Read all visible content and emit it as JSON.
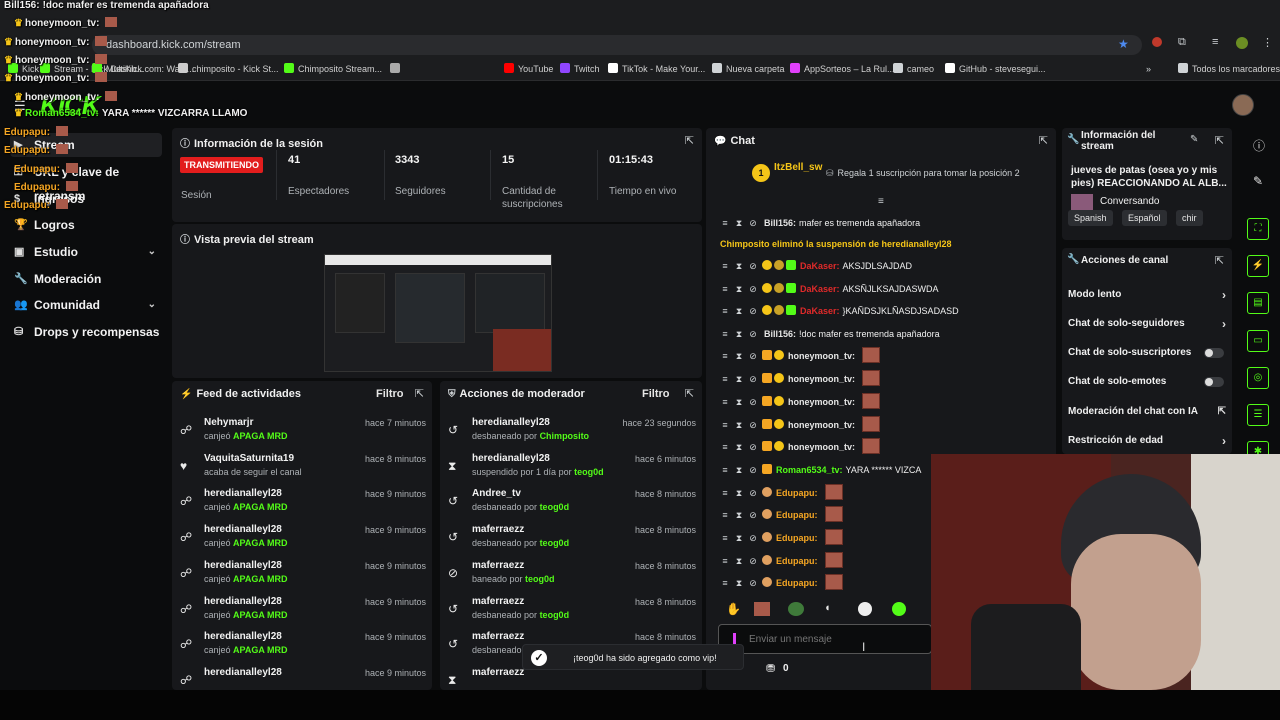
{
  "browser": {
    "url": "dashboard.kick.com/stream",
    "bookmarks": [
      {
        "label": "Kick",
        "color": "#53fc18"
      },
      {
        "label": "Stream - Kick Dashb...",
        "color": "#53fc18"
      },
      {
        "label": "MultiKick.com: Watc...",
        "color": "#53fc18"
      },
      {
        "label": "chimposito - Kick St...",
        "color": "#cccccc"
      },
      {
        "label": "Chimposito Stream...",
        "color": "#53fc18"
      },
      {
        "label": "",
        "color": "#aaaaaa"
      },
      {
        "label": "YouTube",
        "color": "#ff0000"
      },
      {
        "label": "Twitch",
        "color": "#9146ff"
      },
      {
        "label": "TikTok - Make Your...",
        "color": "#ffffff"
      },
      {
        "label": "Nueva carpeta",
        "color": "#cfd3d6"
      },
      {
        "label": "AppSorteos – La Rul...",
        "color": "#e040fb"
      },
      {
        "label": "cameo",
        "color": "#cfd3d6"
      },
      {
        "label": "GitHub - stevesegui...",
        "color": "#ffffff"
      }
    ],
    "all_bookmarks": "Todos los marcadores"
  },
  "brand": {
    "logo": "KICK",
    "accent": "#53fc18"
  },
  "sidebar": {
    "items": [
      {
        "label": "Stream",
        "icon": "video-icon"
      },
      {
        "label": "URL y clave de retransm",
        "icon": "key-icon"
      },
      {
        "label": "Ingresos",
        "icon": "money-icon"
      },
      {
        "label": "Logros",
        "icon": "trophy-icon"
      },
      {
        "label": "Estudio",
        "icon": "studio-icon"
      },
      {
        "label": "Moderación",
        "icon": "wrench-icon"
      },
      {
        "label": "Comunidad",
        "icon": "people-icon"
      },
      {
        "label": "Drops y recompensas",
        "icon": "gift-icon"
      }
    ]
  },
  "session": {
    "title": "Información de la sesión",
    "live_badge": "TRANSMITIENDO",
    "session_label": "Sesión",
    "viewers": "41",
    "viewers_label": "Espectadores",
    "followers": "3343",
    "followers_label": "Seguidores",
    "subs": "15",
    "subs_label": "Cantidad de suscripciones",
    "time": "01:15:43",
    "time_label": "Tiempo en vivo"
  },
  "preview": {
    "title": "Vista previa del stream"
  },
  "feed": {
    "title": "Feed de actividades",
    "filter": "Filtro",
    "rows": [
      {
        "user": "Nehymarjr",
        "time": "hace 7 minutos",
        "pre": "canjeó ",
        "hl": "APAGA MRD",
        "icon": "redeem-icon"
      },
      {
        "user": "VaquitaSaturnita19",
        "time": "hace 8 minutos",
        "pre": "acaba de seguir el canal",
        "hl": "",
        "icon": "heart-icon"
      },
      {
        "user": "heredianalleyl28",
        "time": "hace 9 minutos",
        "pre": "canjeó ",
        "hl": "APAGA MRD",
        "icon": "redeem-icon"
      },
      {
        "user": "heredianalleyl28",
        "time": "hace 9 minutos",
        "pre": "canjeó ",
        "hl": "APAGA MRD",
        "icon": "redeem-icon"
      },
      {
        "user": "heredianalleyl28",
        "time": "hace 9 minutos",
        "pre": "canjeó ",
        "hl": "APAGA MRD",
        "icon": "redeem-icon"
      },
      {
        "user": "heredianalleyl28",
        "time": "hace 9 minutos",
        "pre": "canjeó ",
        "hl": "APAGA MRD",
        "icon": "redeem-icon"
      },
      {
        "user": "heredianalleyl28",
        "time": "hace 9 minutos",
        "pre": "canjeó ",
        "hl": "APAGA MRD",
        "icon": "redeem-icon"
      },
      {
        "user": "heredianalleyl28",
        "time": "hace 9 minutos",
        "pre": "",
        "hl": "",
        "icon": "redeem-icon"
      }
    ]
  },
  "modactions": {
    "title": "Acciones de moderador",
    "filter": "Filtro",
    "rows": [
      {
        "user": "heredianalleyl28",
        "time": "hace 23 segundos",
        "pre": "desbaneado por ",
        "by": "Chimposito",
        "icon": "undo-icon"
      },
      {
        "user": "heredianalleyl28",
        "time": "hace 6 minutos",
        "pre": "suspendido por 1 día por ",
        "by": "teog0d",
        "icon": "hourglass-icon"
      },
      {
        "user": "Andree_tv",
        "time": "hace 8 minutos",
        "pre": "desbaneado por ",
        "by": "teog0d",
        "icon": "undo-icon"
      },
      {
        "user": "maferraezz",
        "time": "hace 8 minutos",
        "pre": "desbaneado por ",
        "by": "teog0d",
        "icon": "undo-icon"
      },
      {
        "user": "maferraezz",
        "time": "hace 8 minutos",
        "pre": "baneado por ",
        "by": "teog0d",
        "icon": "ban-icon"
      },
      {
        "user": "maferraezz",
        "time": "hace 8 minutos",
        "pre": "desbaneado por ",
        "by": "teog0d",
        "icon": "undo-icon"
      },
      {
        "user": "maferraezz",
        "time": "hace 8 minutos",
        "pre": "desbaneado",
        "by": "",
        "icon": "undo-icon"
      },
      {
        "user": "maferraezz",
        "time": "",
        "pre": "",
        "by": "",
        "icon": "hourglass-icon"
      }
    ]
  },
  "chat": {
    "title": "Chat",
    "pinned_user": "ItzBell_sw",
    "pinned_text": "Regala 1 suscripción para tomar la posición 2",
    "pinned_badge": "1",
    "messages": [
      {
        "user": "Bill156:",
        "text": "mafer es tremenda apañadora",
        "color": "#e6e6e6"
      },
      {
        "user": "",
        "text": "",
        "system": "Chimposito eliminó la suspensión de heredianalleyl28",
        "color": "#f5c518"
      },
      {
        "user": "DaKaser:",
        "text": "AKSJDLSAJDAD",
        "color": "#e02a2a"
      },
      {
        "user": "DaKaser:",
        "text": "AKSÑJLKSAJDASWDA",
        "color": "#e02a2a"
      },
      {
        "user": "DaKaser:",
        "text": "}KAÑDSJKLÑASDJSADASD",
        "color": "#e02a2a"
      },
      {
        "user": "Bill156:",
        "text": "!doc mafer es tremenda apañadora",
        "color": "#e6e6e6"
      },
      {
        "user": "honeymoon_tv:",
        "text": "",
        "color": "#e6e6e6"
      },
      {
        "user": "honeymoon_tv:",
        "text": "",
        "color": "#e6e6e6"
      },
      {
        "user": "honeymoon_tv:",
        "text": "",
        "color": "#e6e6e6"
      },
      {
        "user": "honeymoon_tv:",
        "text": "",
        "color": "#e6e6e6"
      },
      {
        "user": "honeymoon_tv:",
        "text": "",
        "color": "#e6e6e6"
      },
      {
        "user": "Roman6534_tv:",
        "text": "YARA ****** VIZCA",
        "color": "#53fc18"
      },
      {
        "user": "Edupapu:",
        "text": "",
        "color": "#f5a623"
      },
      {
        "user": "Edupapu:",
        "text": "",
        "color": "#f5a623"
      },
      {
        "user": "Edupapu:",
        "text": "",
        "color": "#f5a623"
      },
      {
        "user": "Edupapu:",
        "text": "",
        "color": "#f5a623"
      },
      {
        "user": "Edupapu:",
        "text": "",
        "color": "#f5a623"
      }
    ],
    "input_placeholder": "Enviar un mensaje",
    "points": "0"
  },
  "stream_info": {
    "title": "Información del stream",
    "stream_title": "jueves de patas (osea yo y mis pies) REACCIONANDO AL ALB...",
    "category": "Conversando",
    "tags": [
      "Spanish",
      "Español",
      "chir"
    ]
  },
  "channel_actions": {
    "title": "Acciones de canal",
    "items": [
      {
        "label": "Modo lento",
        "type": "arrow"
      },
      {
        "label": "Chat de solo-seguidores",
        "type": "arrow"
      },
      {
        "label": "Chat de solo-suscriptores",
        "type": "toggle"
      },
      {
        "label": "Chat de solo-emotes",
        "type": "toggle"
      },
      {
        "label": "Moderación del chat con IA",
        "type": "external"
      },
      {
        "label": "Restricción de edad",
        "type": "arrow"
      }
    ]
  },
  "toast": {
    "text": "¡teog0d ha sido agregado como vip!"
  },
  "overlay": [
    {
      "user": "Bill156:",
      "text": "!doc mafer es tremenda apañadora",
      "color": "#f0f0f0"
    },
    {
      "user": "honeymoon_tv:",
      "text": "",
      "color": "#f0f0f0"
    },
    {
      "user": "honeymoon_tv:",
      "text": "",
      "color": "#f0f0f0"
    },
    {
      "user": "honeymoon_tv:",
      "text": "",
      "color": "#f0f0f0"
    },
    {
      "user": "honeymoon_tv:",
      "text": "",
      "color": "#f0f0f0"
    },
    {
      "user": "honeymoon_tv:",
      "text": "",
      "color": "#f0f0f0"
    },
    {
      "user": "Roman6534_tv:",
      "text": "YARA ****** VIZCARRA LLAMO",
      "color": "#53fc18"
    },
    {
      "user": "Edupapu:",
      "text": "",
      "color": "#f5a623"
    },
    {
      "user": "Edupapu:",
      "text": "",
      "color": "#f5a623"
    },
    {
      "user": "Edupapu:",
      "text": "",
      "color": "#f5a623"
    },
    {
      "user": "Edupapu:",
      "text": "",
      "color": "#f5a623"
    },
    {
      "user": "Edupapu:",
      "text": "",
      "color": "#f5a623"
    }
  ]
}
